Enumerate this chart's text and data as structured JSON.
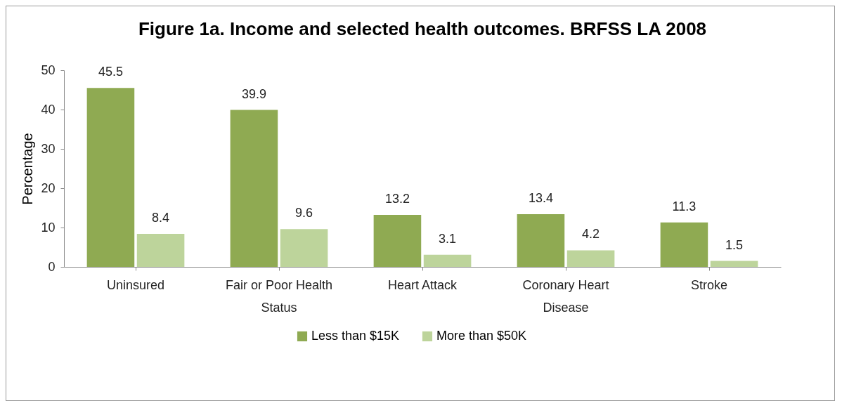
{
  "chart_data": {
    "type": "bar",
    "title": "Figure 1a. Income and selected health outcomes.  BRFSS LA 2008",
    "ylabel": "Percentage",
    "categories": [
      "Uninsured",
      "Fair or Poor Health Status",
      "Heart Attack",
      "Coronary Heart Disease",
      "Stroke"
    ],
    "series": [
      {
        "name": "Less than $15K",
        "color": "#8faa52",
        "values": [
          45.5,
          39.9,
          13.2,
          13.4,
          11.3
        ]
      },
      {
        "name": "More than $50K",
        "color": "#bdd49b",
        "values": [
          8.4,
          9.6,
          3.1,
          4.2,
          1.5
        ]
      }
    ],
    "ylim": [
      0,
      50
    ],
    "yticks": [
      0,
      10,
      20,
      30,
      40,
      50
    ],
    "grid": false,
    "legend": "bottom",
    "data_labels": true
  }
}
